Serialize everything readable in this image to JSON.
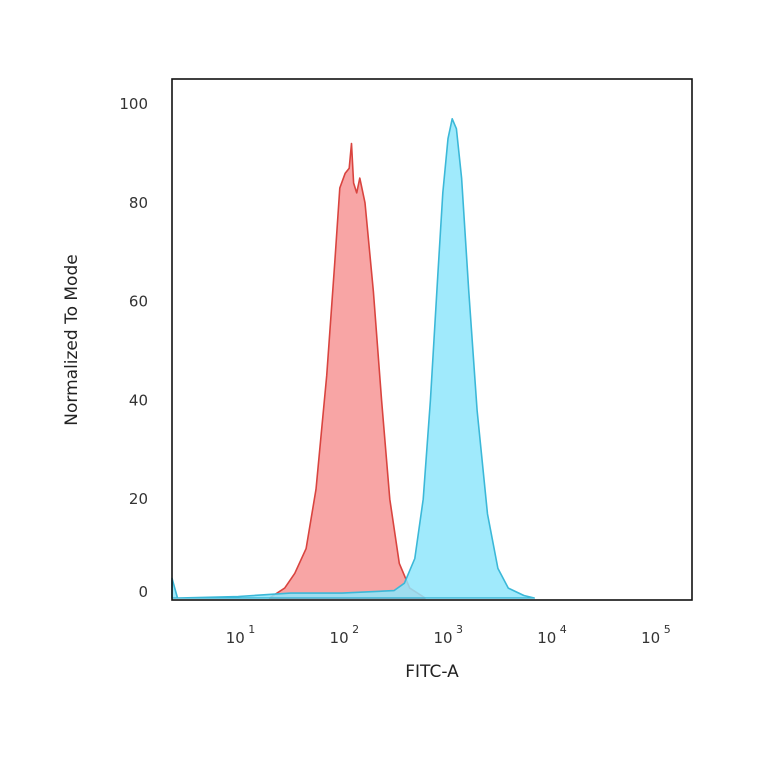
{
  "chart_data": {
    "type": "area",
    "xlabel": "FITC-A",
    "ylabel": "Normalized To Mode",
    "x_scale": "log",
    "xlim": [
      2.3,
      234000
    ],
    "ylim": [
      0,
      100
    ],
    "grid": false,
    "x_ticks": [
      {
        "base": "10",
        "exp": "1",
        "value": 10
      },
      {
        "base": "10",
        "exp": "2",
        "value": 100
      },
      {
        "base": "10",
        "exp": "3",
        "value": 1000
      },
      {
        "base": "10",
        "exp": "4",
        "value": 10000
      },
      {
        "base": "10",
        "exp": "5",
        "value": 100000
      }
    ],
    "y_ticks": [
      "0",
      "20",
      "40",
      "60",
      "80",
      "100"
    ],
    "series": [
      {
        "color": "#d9443f",
        "fill": "#f8a0a0",
        "x": [
          20,
          28,
          35,
          45,
          56,
          71,
          85,
          95,
          107,
          117,
          123,
          129,
          138,
          148,
          166,
          200,
          240,
          288,
          355,
          447,
          631
        ],
        "y": [
          0,
          2,
          5,
          10,
          22,
          45,
          68,
          83,
          86,
          87,
          92,
          84,
          82,
          85,
          80,
          62,
          40,
          20,
          7,
          2,
          0
        ]
      },
      {
        "color": "#3bb8d8",
        "fill": "#8fe6fb",
        "x": [
          2.3,
          2.6,
          10,
          32,
          100,
          316,
          398,
          501,
          603,
          708,
          832,
          933,
          1047,
          1148,
          1259,
          1413,
          1660,
          1995,
          2512,
          3162,
          3981,
          5623,
          7079
        ],
        "y": [
          4,
          0,
          0.3,
          1,
          1,
          1.5,
          3,
          8,
          20,
          40,
          65,
          82,
          93,
          97,
          95,
          85,
          62,
          38,
          17,
          6,
          2,
          0.5,
          0
        ]
      }
    ]
  }
}
